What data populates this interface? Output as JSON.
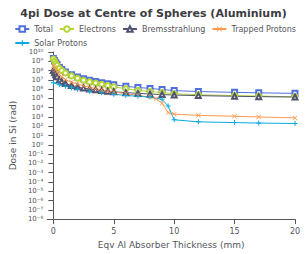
{
  "chart_data": {
    "type": "line",
    "title": "4pi Dose at Centre of Spheres (Aluminium)",
    "xlabel": "Eqv Al Absorber Thickness (mm)",
    "ylabel": "Dose in Si (rad)",
    "log": "y",
    "grid": false,
    "legend": "upper right",
    "xlim": [
      -0.5,
      20
    ],
    "xticks": [
      0,
      5,
      10,
      15,
      20
    ],
    "ylim": [
      1e-08,
      10000000000.0
    ],
    "yticks": [
      {
        "value": 1e-08,
        "label": "10⁻⁸"
      },
      {
        "value": 1e-07,
        "label": "10⁻⁷"
      },
      {
        "value": 1e-06,
        "label": "10⁻⁶"
      },
      {
        "value": 1e-05,
        "label": "10⁻⁵"
      },
      {
        "value": 0.0001,
        "label": "10⁻⁴"
      },
      {
        "value": 0.001,
        "label": "10⁻³"
      },
      {
        "value": 0.01,
        "label": "10⁻²"
      },
      {
        "value": 0.1,
        "label": "10⁻¹"
      },
      {
        "value": 1,
        "label": "10⁰"
      },
      {
        "value": 10.0,
        "label": "10¹"
      },
      {
        "value": 100.0,
        "label": "10²"
      },
      {
        "value": 1000.0,
        "label": "10³"
      },
      {
        "value": 10000.0,
        "label": "10⁴"
      },
      {
        "value": 100000.0,
        "label": "10⁵"
      },
      {
        "value": 1000000.0,
        "label": "10⁶"
      },
      {
        "value": 10000000.0,
        "label": "10⁷"
      },
      {
        "value": 100000000.0,
        "label": "10⁸"
      },
      {
        "value": 1000000000.0,
        "label": "10⁹"
      },
      {
        "value": 10000000000.0,
        "label": "10¹⁰"
      }
    ],
    "series": [
      {
        "name": "Total",
        "marker": "square",
        "x": [
          0.0,
          0.1,
          0.2,
          0.3,
          0.5,
          0.7,
          1.0,
          1.5,
          2.0,
          2.5,
          3.0,
          3.5,
          4.0,
          4.5,
          5.0,
          6.0,
          7.0,
          8.0,
          9.0,
          10.0,
          12.0,
          15.0,
          17.0,
          20.0
        ],
        "values": [
          2000000000.0,
          1200000000.0,
          700000000.0,
          450000000.0,
          220000000.0,
          130000000.0,
          70000000.0,
          35000000.0,
          20000000.0,
          13000000.0,
          9000000.0,
          6500000.0,
          5000000.0,
          3800000.0,
          3000000.0,
          2000000.0,
          1500000.0,
          1200000.0,
          900000.0,
          700000.0,
          550000.0,
          450000.0,
          400000.0,
          350000.0
        ]
      },
      {
        "name": "Electrons",
        "marker": "circle",
        "x": [
          0.0,
          0.1,
          0.2,
          0.3,
          0.5,
          0.7,
          1.0,
          1.5,
          2.0,
          2.5,
          3.0,
          3.5,
          4.0,
          4.5,
          5.0,
          6.0,
          7.0,
          8.0,
          9.0,
          10.0,
          12.0,
          15.0,
          17.0,
          20.0
        ],
        "values": [
          1800000000.0,
          1000000000.0,
          600000000.0,
          380000000.0,
          180000000.0,
          100000000.0,
          55000000.0,
          27000000.0,
          15000000.0,
          9000000.0,
          6000000.0,
          4500000.0,
          3300000.0,
          2400000.0,
          1800000.0,
          1100000.0,
          750000.0,
          550000.0,
          420000.0,
          320000.0,
          250000.0,
          200000.0,
          180000.0,
          150000.0
        ]
      },
      {
        "name": "Bremsstrahlung",
        "marker": "triangle",
        "x": [
          0.0,
          0.1,
          0.2,
          0.3,
          0.5,
          0.7,
          1.0,
          1.5,
          2.0,
          2.5,
          3.0,
          3.5,
          4.0,
          4.5,
          5.0,
          6.0,
          7.0,
          8.0,
          9.0,
          10.0,
          12.0,
          15.0,
          17.0,
          20.0
        ],
        "values": [
          100000000.0,
          60000000.0,
          35000000.0,
          22000000.0,
          10000000.0,
          6500000.0,
          4000000.0,
          2500000.0,
          1800000.0,
          1350000.0,
          1050000.0,
          850000.0,
          700000.0,
          600000.0,
          520000.0,
          420000.0,
          350000.0,
          300000.0,
          260000.0,
          230000.0,
          200000.0,
          170000.0,
          155000.0,
          140000.0
        ]
      },
      {
        "name": "Trapped Protons",
        "marker": "x",
        "x": [
          0.0,
          0.1,
          0.2,
          0.3,
          0.5,
          0.7,
          1.0,
          1.5,
          2.0,
          2.5,
          3.0,
          3.5,
          4.0,
          4.5,
          5.0,
          6.0,
          7.0,
          8.0,
          8.5,
          9.0,
          9.5,
          10.0,
          12.0,
          15.0,
          17.0,
          20.0
        ],
        "values": [
          300000000.0,
          200000000.0,
          120000000.0,
          75000000.0,
          35000000.0,
          20000000.0,
          11000000.0,
          5500000.0,
          3500000.0,
          2300000.0,
          1600000.0,
          1150000.0,
          850000.0,
          650000.0,
          500000.0,
          320000.0,
          210000.0,
          140000.0,
          90000.0,
          30000.0,
          3000.0,
          2000.0,
          1500.0,
          1200.0,
          1000.0,
          800.0
        ]
      },
      {
        "name": "Solar Protons",
        "marker": "plus",
        "x": [
          0.0,
          0.5,
          1.0,
          1.5,
          2.0,
          3.0,
          4.0,
          5.0,
          6.0,
          7.0,
          8.0,
          9.0,
          9.5,
          10.0,
          12.0,
          15.0,
          17.0,
          20.0
        ],
        "values": [
          5000000.0,
          3000000.0,
          2000000.0,
          1400000.0,
          1000000.0,
          600000.0,
          400000.0,
          280000.0,
          210000.0,
          170000.0,
          140000.0,
          80000.0,
          15000.0,
          500.0,
          300.0,
          250.0,
          220.0,
          200.0
        ]
      }
    ]
  }
}
